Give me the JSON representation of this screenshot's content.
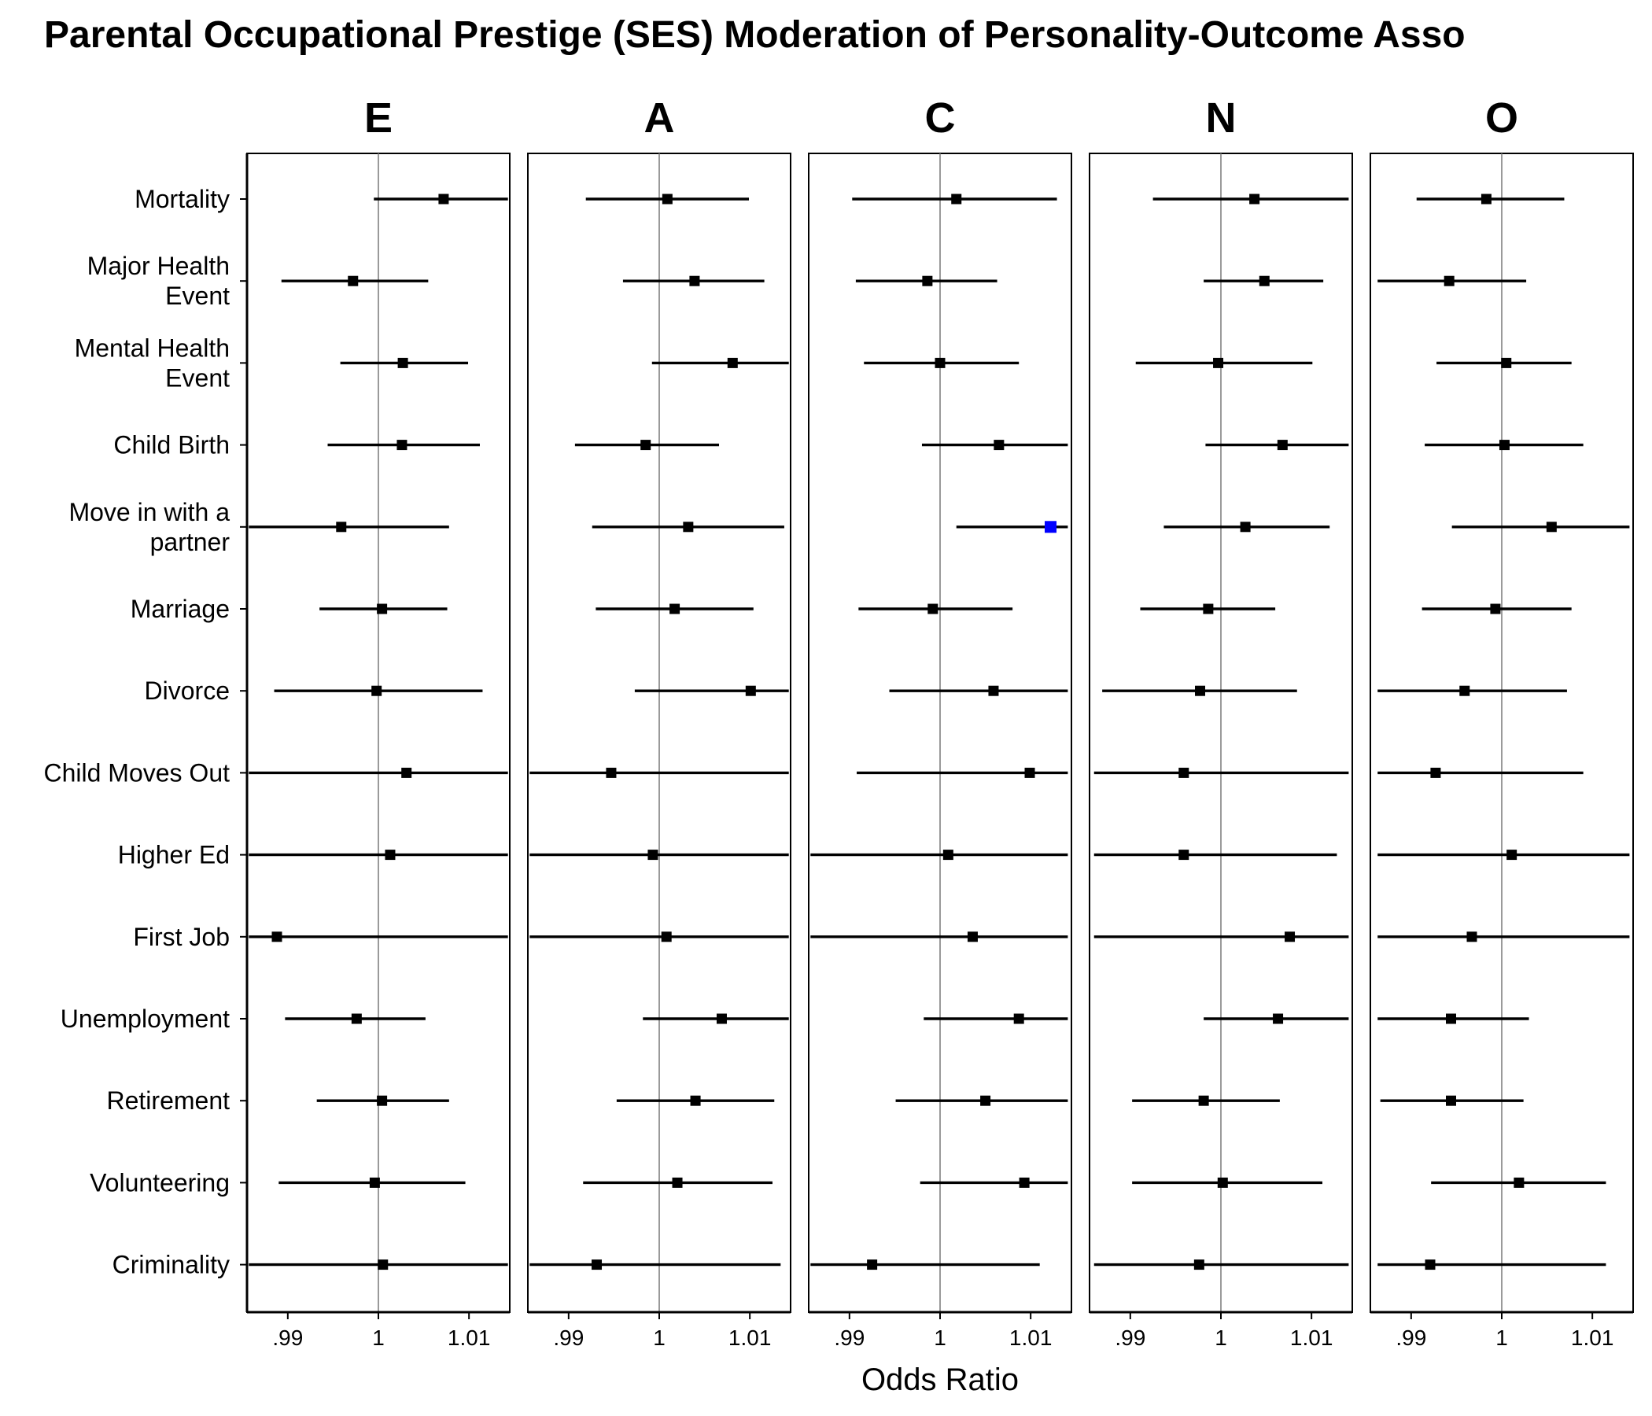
{
  "chart_data": {
    "type": "forest",
    "title": "Parental Occupational Prestige (SES) Moderation of Personality-Outcome Asso",
    "xlabel": "Odds Ratio",
    "xlim": [
      0.9855,
      1.0145
    ],
    "xticks": [
      0.99,
      1,
      1.01
    ],
    "xtick_labels": [
      ".99",
      "1",
      "1.01"
    ],
    "reference_line": 1,
    "facets": [
      "E",
      "A",
      "C",
      "N",
      "O"
    ],
    "categories": [
      "Mortality",
      "Major Health\nEvent",
      "Mental Health\nEvent",
      "Child Birth",
      "Move in with a\npartner",
      "Marriage",
      "Divorce",
      "Child Moves Out",
      "Higher Ed",
      "First Job",
      "Unemployment",
      "Retirement",
      "Volunteering",
      "Criminality"
    ],
    "colors": {
      "default": "#000000",
      "highlight": "#0000ff",
      "refline": "#808080"
    },
    "series": [
      {
        "facet": "E",
        "or": [
          1.0072,
          0.9972,
          1.0027,
          1.0026,
          0.9959,
          1.0004,
          0.9998,
          1.0031,
          1.0013,
          0.9888,
          0.9976,
          1.0004,
          0.9996,
          1.0005
        ],
        "low": [
          0.9995,
          0.9893,
          0.9958,
          0.9944,
          0.9857,
          0.9935,
          0.9885,
          0.9857,
          0.9857,
          0.9857,
          0.9897,
          0.9932,
          0.989,
          0.9857
        ],
        "high": [
          1.0143,
          1.0055,
          1.0099,
          1.0112,
          1.0078,
          1.0076,
          1.0115,
          1.0143,
          1.0143,
          1.0143,
          1.0052,
          1.0078,
          1.0096,
          1.0143
        ],
        "highlight": []
      },
      {
        "facet": "A",
        "or": [
          1.0009,
          1.0039,
          1.0081,
          0.9985,
          1.0032,
          1.0017,
          1.0101,
          0.9947,
          0.9993,
          1.0008,
          1.0069,
          1.004,
          1.002,
          0.9931
        ],
        "low": [
          0.9919,
          0.996,
          0.9992,
          0.9907,
          0.9926,
          0.993,
          0.9973,
          0.9857,
          0.9857,
          0.9857,
          0.9982,
          0.9953,
          0.9916,
          0.9857
        ],
        "high": [
          1.0099,
          1.0116,
          1.0143,
          1.0066,
          1.0138,
          1.0104,
          1.0143,
          1.0143,
          1.0143,
          1.0143,
          1.0143,
          1.0127,
          1.0125,
          1.0134
        ],
        "highlight": []
      },
      {
        "facet": "C",
        "or": [
          1.0018,
          0.9986,
          1.0,
          1.0065,
          1.0122,
          0.9992,
          1.0059,
          1.0099,
          1.0009,
          1.0036,
          1.0087,
          1.005,
          1.0093,
          0.9925
        ],
        "low": [
          0.9903,
          0.9907,
          0.9916,
          0.998,
          1.0018,
          0.991,
          0.9944,
          0.9908,
          0.9857,
          0.9857,
          0.9982,
          0.9951,
          0.9978,
          0.9857
        ],
        "high": [
          1.0129,
          1.0063,
          1.0087,
          1.0141,
          1.0141,
          1.008,
          1.0141,
          1.0141,
          1.0141,
          1.0141,
          1.0141,
          1.0141,
          1.0141,
          1.011
        ],
        "highlight": [
          4
        ]
      },
      {
        "facet": "N",
        "or": [
          1.0037,
          1.0048,
          0.9997,
          1.0068,
          1.0027,
          0.9986,
          0.9977,
          0.9959,
          0.9959,
          1.0076,
          1.0063,
          0.9981,
          1.0002,
          0.9976
        ],
        "low": [
          0.9925,
          0.9981,
          0.9906,
          0.9983,
          0.9937,
          0.9911,
          0.9869,
          0.986,
          0.986,
          0.986,
          0.9981,
          0.9902,
          0.9902,
          0.986
        ],
        "high": [
          1.0141,
          1.0113,
          1.0101,
          1.0141,
          1.012,
          1.006,
          1.0084,
          1.0141,
          1.0128,
          1.0141,
          1.0141,
          1.0065,
          1.0112,
          1.0141
        ],
        "highlight": []
      },
      {
        "facet": "O",
        "or": [
          0.9983,
          0.9942,
          1.0005,
          1.0003,
          1.0055,
          0.9993,
          0.9959,
          0.9927,
          1.0011,
          0.9967,
          0.9944,
          0.9944,
          1.0019,
          0.9921
        ],
        "low": [
          0.9906,
          0.9863,
          0.9928,
          0.9915,
          0.9945,
          0.9912,
          0.9863,
          0.9863,
          0.9863,
          0.9863,
          0.9863,
          0.9866,
          0.9922,
          0.9863
        ],
        "high": [
          1.0069,
          1.0027,
          1.0077,
          1.009,
          1.0141,
          1.0077,
          1.0072,
          1.009,
          1.0141,
          1.0141,
          1.003,
          1.0024,
          1.0115,
          1.0115
        ],
        "highlight": []
      }
    ]
  }
}
